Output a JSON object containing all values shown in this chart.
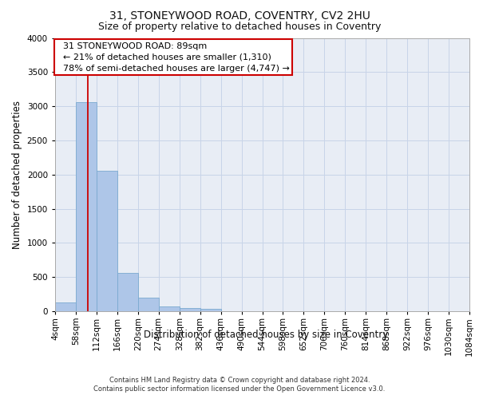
{
  "title": "31, STONEYWOOD ROAD, COVENTRY, CV2 2HU",
  "subtitle": "Size of property relative to detached houses in Coventry",
  "xlabel": "Distribution of detached houses by size in Coventry",
  "ylabel": "Number of detached properties",
  "footer1": "Contains HM Land Registry data © Crown copyright and database right 2024.",
  "footer2": "Contains public sector information licensed under the Open Government Licence v3.0.",
  "bin_edges": [
    4,
    58,
    112,
    166,
    220,
    274,
    328,
    382,
    436,
    490,
    544,
    598,
    652,
    706,
    760,
    814,
    868,
    922,
    976,
    1030,
    1084
  ],
  "bar_heights": [
    130,
    3060,
    2060,
    555,
    195,
    75,
    50,
    35,
    0,
    0,
    0,
    0,
    0,
    0,
    0,
    0,
    0,
    0,
    0,
    0
  ],
  "bar_color": "#aec6e8",
  "bar_edge_color": "#7aaad0",
  "red_line_x": 89,
  "ylim": [
    0,
    4000
  ],
  "yticks": [
    0,
    500,
    1000,
    1500,
    2000,
    2500,
    3000,
    3500,
    4000
  ],
  "annotation_line1": "  31 STONEYWOOD ROAD: 89sqm",
  "annotation_line2": "  ← 21% of detached houses are smaller (1,310)",
  "annotation_line3": "  78% of semi-detached houses are larger (4,747) →",
  "annotation_box_color": "#cc0000",
  "grid_color": "#c8d4e8",
  "bg_color": "#e8edf5",
  "title_fontsize": 10,
  "subtitle_fontsize": 9,
  "axis_label_fontsize": 8.5,
  "tick_fontsize": 7.5,
  "annotation_fontsize": 8
}
